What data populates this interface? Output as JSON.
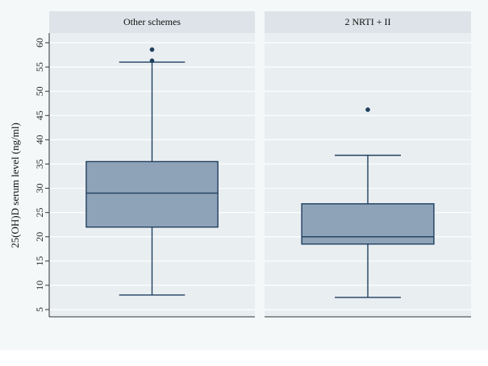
{
  "chart_data": {
    "type": "box",
    "ylabel": "25(OH)D serum level  (ng/ml)",
    "ylim": [
      3.5,
      62
    ],
    "yticks": [
      5,
      10,
      15,
      20,
      25,
      30,
      35,
      40,
      45,
      50,
      55,
      60
    ],
    "panels": [
      {
        "title": "Other schemes",
        "whisker_low": 8,
        "q1": 22,
        "median": 29,
        "q3": 35.5,
        "whisker_high": 56,
        "outliers": [
          56.3,
          58.6
        ]
      },
      {
        "title": "2 NRTI + II",
        "whisker_low": 7.5,
        "q1": 18.5,
        "median": 20,
        "q3": 26.8,
        "whisker_high": 36.8,
        "outliers": [
          46.2
        ]
      }
    ],
    "colors": {
      "box_fill": "#8fa3b8",
      "box_stroke": "#1f3f5f",
      "outlier": "#1f3f5f",
      "plot_bg": "#e9eef1",
      "outer_bg": "#f5f8f9",
      "header_bg": "#dde3e8",
      "grid": "#ffffff"
    },
    "grid": true
  }
}
